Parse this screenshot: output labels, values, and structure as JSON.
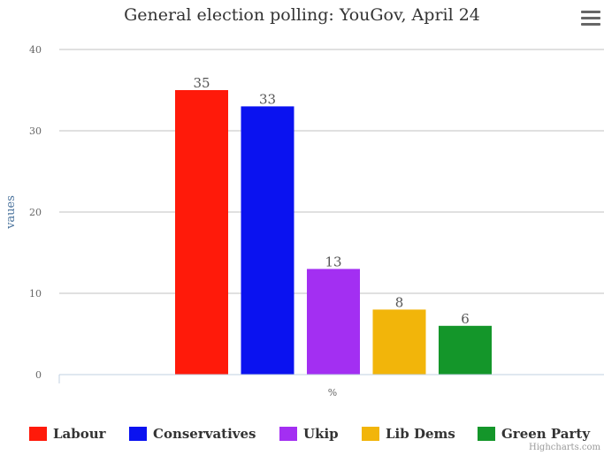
{
  "title": "General election polling: YouGov, April 24",
  "menu": {
    "icon": "hamburger-menu-icon"
  },
  "credits": "Highcharts.com",
  "chart_data": {
    "type": "bar",
    "title": "General election polling: YouGov, April 24",
    "xlabel": "%",
    "ylabel": "vaues",
    "categories": [
      "%"
    ],
    "ylim": [
      0,
      40
    ],
    "yticks": [
      0,
      10,
      20,
      30,
      40
    ],
    "grid": true,
    "legend_position": "bottom",
    "data_labels": true,
    "series": [
      {
        "name": "Labour",
        "values": [
          35
        ],
        "color": "#ff1a0a"
      },
      {
        "name": "Conservatives",
        "values": [
          33
        ],
        "color": "#0a12f0"
      },
      {
        "name": "Ukip",
        "values": [
          13
        ],
        "color": "#a32ff2"
      },
      {
        "name": "Lib Dems",
        "values": [
          8
        ],
        "color": "#f2b50a"
      },
      {
        "name": "Green Party",
        "values": [
          6
        ],
        "color": "#14962a"
      }
    ]
  }
}
